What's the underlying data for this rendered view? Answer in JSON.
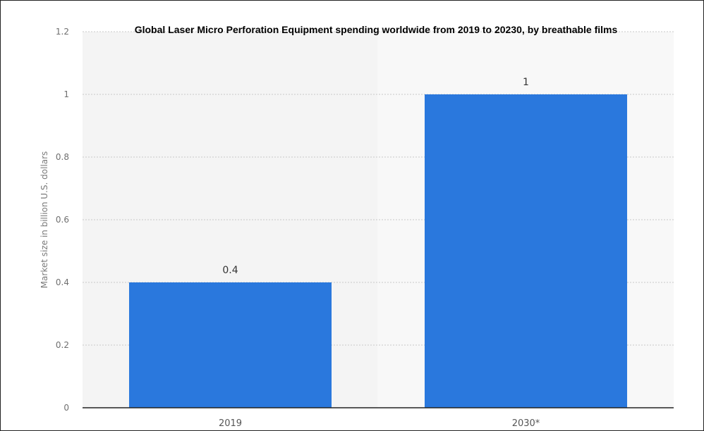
{
  "chart_data": {
    "type": "bar",
    "title": "Global Laser Micro Perforation Equipment spending worldwide from 2019 to 20230, by breathable films",
    "xlabel": "",
    "ylabel": "Market size in billion U.S. dollars",
    "categories": [
      "2019",
      "2030*"
    ],
    "values": [
      0.4,
      1
    ],
    "data_labels": [
      "0.4",
      "1"
    ],
    "ylim": [
      0,
      1.2
    ],
    "yticks": [
      0,
      0.2,
      0.4,
      0.6,
      0.8,
      1,
      1.2
    ],
    "ytick_labels": [
      "0",
      "0.2",
      "0.4",
      "0.6",
      "0.8",
      "1",
      "1.2"
    ],
    "grid": true,
    "legend": "none",
    "colors": {
      "bar": "#2a78dd",
      "axis": "#222222",
      "grid": "#c9c9c9"
    }
  }
}
